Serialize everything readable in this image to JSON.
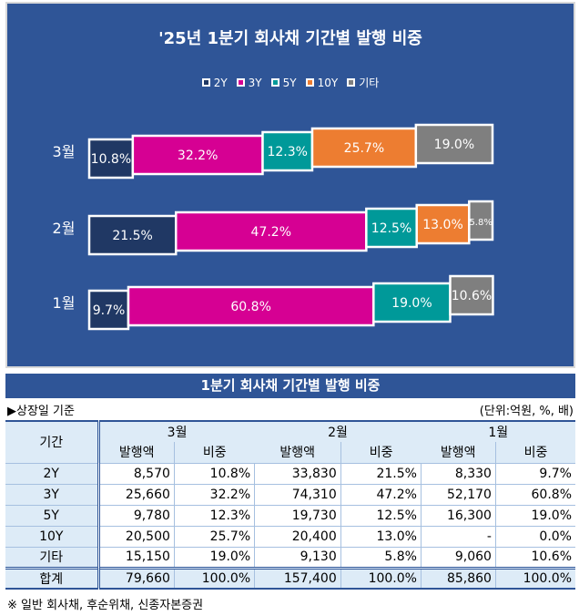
{
  "chart_data": {
    "type": "bar",
    "stacked": true,
    "orientation": "horizontal",
    "title": "'25년 1분기 회사채 기간별 발행 비중",
    "categories": [
      "3월",
      "2월",
      "1월"
    ],
    "series": [
      {
        "name": "2Y",
        "color": "#203864",
        "values": [
          10.8,
          21.5,
          9.7
        ]
      },
      {
        "name": "3Y",
        "color": "#D60093",
        "values": [
          32.2,
          47.2,
          60.8
        ]
      },
      {
        "name": "5Y",
        "color": "#009999",
        "values": [
          12.3,
          12.5,
          19.0
        ]
      },
      {
        "name": "10Y",
        "color": "#ED7D31",
        "values": [
          25.7,
          13.0,
          0.0
        ]
      },
      {
        "name": "기타",
        "color": "#7F7F7F",
        "values": [
          19.0,
          5.8,
          10.6
        ]
      }
    ],
    "legend": "top",
    "xlim": [
      0,
      100
    ]
  },
  "table": {
    "title": "1분기  회사채 기간별 발행 비중",
    "basis": "▶상장일 기준",
    "unit": "(단위:억원, %, 배)",
    "period_header": "기간",
    "months": [
      "3월",
      "2월",
      "1월"
    ],
    "sub": [
      "발행액",
      "비중"
    ],
    "rows": [
      [
        "2Y",
        "8,570",
        "10.8%",
        "33,830",
        "21.5%",
        "8,330",
        "9.7%"
      ],
      [
        "3Y",
        "25,660",
        "32.2%",
        "74,310",
        "47.2%",
        "52,170",
        "60.8%"
      ],
      [
        "5Y",
        "9,780",
        "12.3%",
        "19,730",
        "12.5%",
        "16,300",
        "19.0%"
      ],
      [
        "10Y",
        "20,500",
        "25.7%",
        "20,400",
        "13.0%",
        "-",
        "0.0%"
      ],
      [
        "기타",
        "15,150",
        "19.0%",
        "9,130",
        "5.8%",
        "9,060",
        "10.6%"
      ]
    ],
    "total": [
      "합계",
      "79,660",
      "100.0%",
      "157,400",
      "100.0%",
      "85,860",
      "100.0%"
    ]
  },
  "note": "※ 일반 회사채, 후순위채, 신종자본증권"
}
